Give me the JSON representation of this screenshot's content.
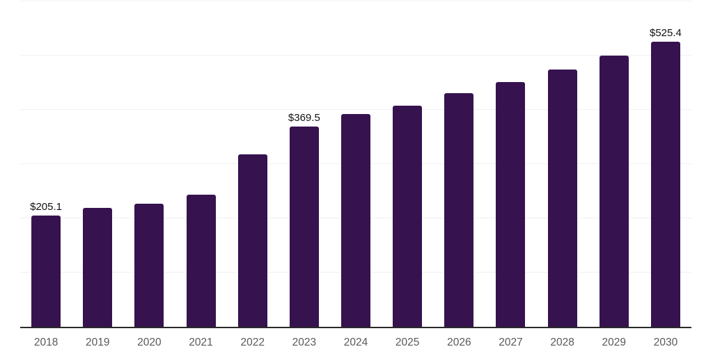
{
  "chart_data": {
    "type": "bar",
    "title": "",
    "xlabel": "",
    "ylabel": "",
    "categories": [
      "2018",
      "2019",
      "2020",
      "2021",
      "2022",
      "2023",
      "2024",
      "2025",
      "2026",
      "2027",
      "2028",
      "2029",
      "2030"
    ],
    "values": [
      205.1,
      219.1,
      226.4,
      243.9,
      317.5,
      369.5,
      391.9,
      408.3,
      431.0,
      451.6,
      473.9,
      499.4,
      525.4
    ],
    "data_labels": {
      "2018": "$205.1",
      "2023": "$369.5",
      "2030": "$525.4"
    },
    "unit_prefix": "$",
    "ylim": [
      0,
      600
    ],
    "grid": true,
    "grid_step": 100,
    "legend_position": "none",
    "colors": {
      "bar": "#36124f",
      "gridline": "#f0f0f2",
      "axis_line": "#2a2a2a",
      "tick_label": "#58595c",
      "value_label": "#111111"
    }
  }
}
